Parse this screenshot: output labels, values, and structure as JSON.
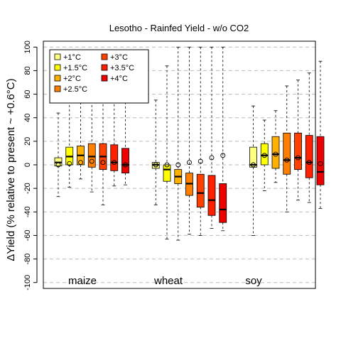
{
  "chart_data": {
    "type": "boxplot",
    "title": "Lesotho - Rainfed Yield - w/o CO2",
    "ylabel": "ΔYield (% relative to present ~ +0.6°C)",
    "ylim": [
      -105,
      105
    ],
    "yticks": [
      -100,
      -80,
      -60,
      -40,
      -20,
      0,
      20,
      40,
      60,
      80,
      100
    ],
    "grid": "horizontal dashed",
    "legend_position": "top-left",
    "crops": [
      "maize",
      "wheat",
      "soy"
    ],
    "scenarios": [
      {
        "name": "+1°C",
        "color": "#FFFF80"
      },
      {
        "name": "+1.5°C",
        "color": "#FFFF00"
      },
      {
        "name": "+2°C",
        "color": "#FFB000"
      },
      {
        "name": "+2.5°C",
        "color": "#FF8000"
      },
      {
        "name": "+3°C",
        "color": "#FF4000"
      },
      {
        "name": "+3.5°C",
        "color": "#FF2000"
      },
      {
        "name": "+4°C",
        "color": "#EE0000"
      }
    ],
    "boxes": [
      {
        "crop": "maize",
        "scenario": "+1°C",
        "min": -27,
        "q1": -1,
        "median": 2,
        "q3": 6,
        "max": 44,
        "mean": 0
      },
      {
        "crop": "maize",
        "scenario": "+1.5°C",
        "min": -19,
        "q1": 0,
        "median": 7,
        "q3": 15,
        "max": 58,
        "mean": 1
      },
      {
        "crop": "maize",
        "scenario": "+2°C",
        "min": -12,
        "q1": 0,
        "median": 8,
        "q3": 16,
        "max": 64,
        "mean": 2
      },
      {
        "crop": "maize",
        "scenario": "+2.5°C",
        "min": -23,
        "q1": -2,
        "median": 7,
        "q3": 18,
        "max": 76,
        "mean": 3
      },
      {
        "crop": "maize",
        "scenario": "+3°C",
        "min": -34,
        "q1": -4,
        "median": 7,
        "q3": 18,
        "max": 84,
        "mean": 2
      },
      {
        "crop": "maize",
        "scenario": "+3.5°C",
        "min": -18,
        "q1": -5,
        "median": 2,
        "q3": 17,
        "max": 84,
        "mean": 2
      },
      {
        "crop": "maize",
        "scenario": "+4°C",
        "min": -17,
        "q1": -7,
        "median": 0,
        "q3": 14,
        "max": 75,
        "mean": 0
      },
      {
        "crop": "wheat",
        "scenario": "+1°C",
        "min": -34,
        "q1": -3,
        "median": 0,
        "q3": 2,
        "max": 55,
        "mean": 0
      },
      {
        "crop": "wheat",
        "scenario": "+1.5°C",
        "min": -63,
        "q1": -14,
        "median": -4,
        "q3": 0,
        "max": 84,
        "mean": 0
      },
      {
        "crop": "wheat",
        "scenario": "+2°C",
        "min": -64,
        "q1": -16,
        "median": -10,
        "q3": -4,
        "max": 100,
        "mean": 0
      },
      {
        "crop": "wheat",
        "scenario": "+2.5°C",
        "min": -59,
        "q1": -26,
        "median": -16,
        "q3": -7,
        "max": 100,
        "mean": 2
      },
      {
        "crop": "wheat",
        "scenario": "+3°C",
        "min": -60,
        "q1": -36,
        "median": -24,
        "q3": -8,
        "max": 100,
        "mean": 3
      },
      {
        "crop": "wheat",
        "scenario": "+3.5°C",
        "min": -54,
        "q1": -43,
        "median": -30,
        "q3": -9,
        "max": 100,
        "mean": 6
      },
      {
        "crop": "wheat",
        "scenario": "+4°C",
        "min": -56,
        "q1": -49,
        "median": -38,
        "q3": -16,
        "max": 100,
        "mean": 8
      },
      {
        "crop": "soy",
        "scenario": "+1°C",
        "min": -60,
        "q1": -2,
        "median": 0,
        "q3": 15,
        "max": 50,
        "mean": 0
      },
      {
        "crop": "soy",
        "scenario": "+1.5°C",
        "min": -22,
        "q1": 0,
        "median": 8,
        "q3": 18,
        "max": 38,
        "mean": 8
      },
      {
        "crop": "soy",
        "scenario": "+2°C",
        "min": -15,
        "q1": -3,
        "median": 9,
        "q3": 24,
        "max": 46,
        "mean": 9
      },
      {
        "crop": "soy",
        "scenario": "+2.5°C",
        "min": -40,
        "q1": -8,
        "median": 4,
        "q3": 27,
        "max": 67,
        "mean": 4
      },
      {
        "crop": "soy",
        "scenario": "+3°C",
        "min": -30,
        "q1": -4,
        "median": 6,
        "q3": 27,
        "max": 72,
        "mean": 6
      },
      {
        "crop": "soy",
        "scenario": "+3.5°C",
        "min": -32,
        "q1": -11,
        "median": 2,
        "q3": 25,
        "max": 78,
        "mean": 2
      },
      {
        "crop": "soy",
        "scenario": "+4°C",
        "min": -37,
        "q1": -17,
        "median": -6,
        "q3": 24,
        "max": 88,
        "mean": 1
      }
    ]
  }
}
